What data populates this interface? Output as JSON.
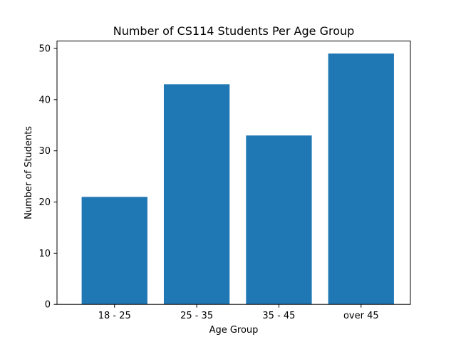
{
  "chart_data": {
    "type": "bar",
    "title": "Number of CS114 Students Per Age Group",
    "xlabel": "Age Group",
    "ylabel": "Number of Students",
    "categories": [
      "18 - 25",
      "25 - 35",
      "35 - 45",
      "over 45"
    ],
    "values": [
      21,
      43,
      33,
      49
    ],
    "ylim": [
      0,
      51.45
    ],
    "yticks": [
      0,
      10,
      20,
      30,
      40,
      50
    ],
    "grid": false,
    "colors": {
      "bar": "#1f77b4",
      "axis": "#000000",
      "background": "#ffffff"
    }
  }
}
